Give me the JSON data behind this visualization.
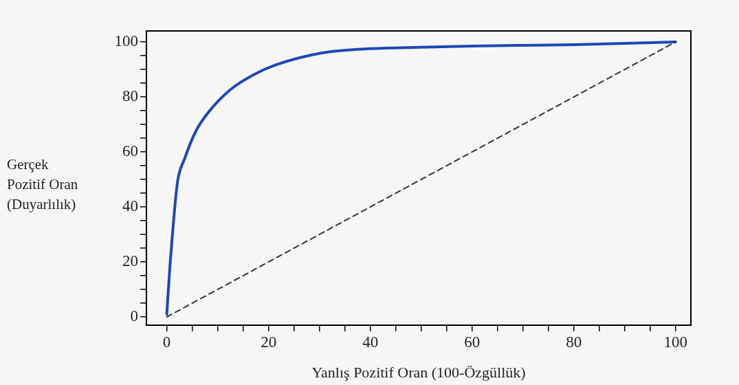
{
  "chart_data": {
    "type": "line",
    "xlabel": "Yanlış Pozitif Oran (100-Özgüllük)",
    "ylabel": "Gerçek Pozitif Oran (Duyarlılık)",
    "xlim": [
      -4,
      103
    ],
    "ylim": [
      -3,
      104
    ],
    "xticks": [
      0,
      {
        "value": 5,
        "label": null
      },
      {
        "value": 10,
        "label": null
      },
      {
        "value": 15,
        "label": null
      },
      20,
      {
        "value": 25,
        "label": null
      },
      {
        "value": 30,
        "label": null
      },
      {
        "value": 35,
        "label": null
      },
      40,
      {
        "value": 45,
        "label": null
      },
      {
        "value": 50,
        "label": null
      },
      {
        "value": 55,
        "label": null
      },
      60,
      {
        "value": 65,
        "label": null
      },
      {
        "value": 70,
        "label": null
      },
      {
        "value": 75,
        "label": null
      },
      80,
      {
        "value": 85,
        "label": null
      },
      {
        "value": 90,
        "label": null
      },
      {
        "value": 95,
        "label": null
      },
      100
    ],
    "yticks": [
      0,
      {
        "value": 5,
        "label": null
      },
      {
        "value": 10,
        "label": null
      },
      {
        "value": 15,
        "label": null
      },
      20,
      {
        "value": 25,
        "label": null
      },
      {
        "value": 30,
        "label": null
      },
      {
        "value": 35,
        "label": null
      },
      40,
      {
        "value": 45,
        "label": null
      },
      {
        "value": 50,
        "label": null
      },
      {
        "value": 55,
        "label": null
      },
      60,
      {
        "value": 65,
        "label": null
      },
      {
        "value": 70,
        "label": null
      },
      {
        "value": 75,
        "label": null
      },
      80,
      {
        "value": 85,
        "label": null
      },
      {
        "value": 90,
        "label": null
      },
      {
        "value": 95,
        "label": null
      },
      100
    ],
    "grid": false,
    "legend": false,
    "marker": "none",
    "series": [
      {
        "color": "#1f47b8",
        "line_style": "solid",
        "x": [
          0,
          0.6,
          1.2,
          2.1,
          3.5,
          5.7,
          8,
          12.4,
          17,
          21.5,
          30.5,
          39.4,
          48.5,
          60,
          80,
          100
        ],
        "values": [
          1,
          18,
          32,
          49,
          57.5,
          67.5,
          74,
          82.5,
          88,
          91.7,
          96,
          97.5,
          98,
          98.5,
          99,
          100
        ]
      },
      {
        "color": "#333333",
        "line_style": "dashed",
        "x": [
          0,
          100
        ],
        "values": [
          0,
          100
        ]
      }
    ]
  }
}
